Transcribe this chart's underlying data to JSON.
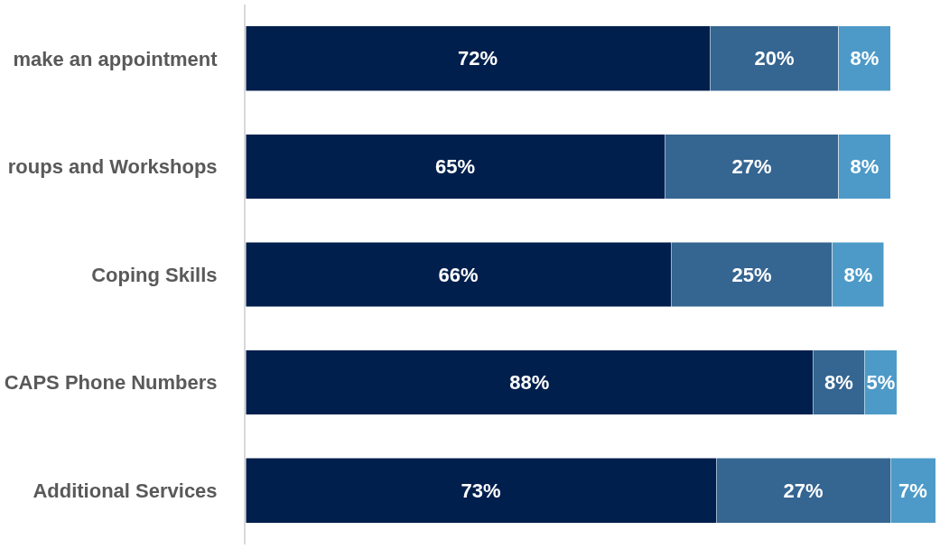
{
  "chart_data": {
    "type": "bar",
    "orientation": "horizontal",
    "stacked": true,
    "categories": [
      "make an appointment",
      "roups and Workshops",
      "Coping Skills",
      "CAPS Phone Numbers",
      "Additional Services"
    ],
    "series": [
      {
        "color": "#001f4d",
        "values": [
          72,
          65,
          66,
          88,
          73
        ],
        "value_labels": [
          "72%",
          "65%",
          "66%",
          "88%",
          "73%"
        ]
      },
      {
        "color": "#356591",
        "values": [
          20,
          27,
          25,
          8,
          27
        ],
        "value_labels": [
          "20%",
          "27%",
          "25%",
          "8%",
          "27%"
        ]
      },
      {
        "color": "#4d9ac8",
        "values": [
          8,
          8,
          8,
          5,
          7
        ],
        "value_labels": [
          "8%",
          "8%",
          "8%",
          "5%",
          "7%"
        ]
      }
    ]
  }
}
